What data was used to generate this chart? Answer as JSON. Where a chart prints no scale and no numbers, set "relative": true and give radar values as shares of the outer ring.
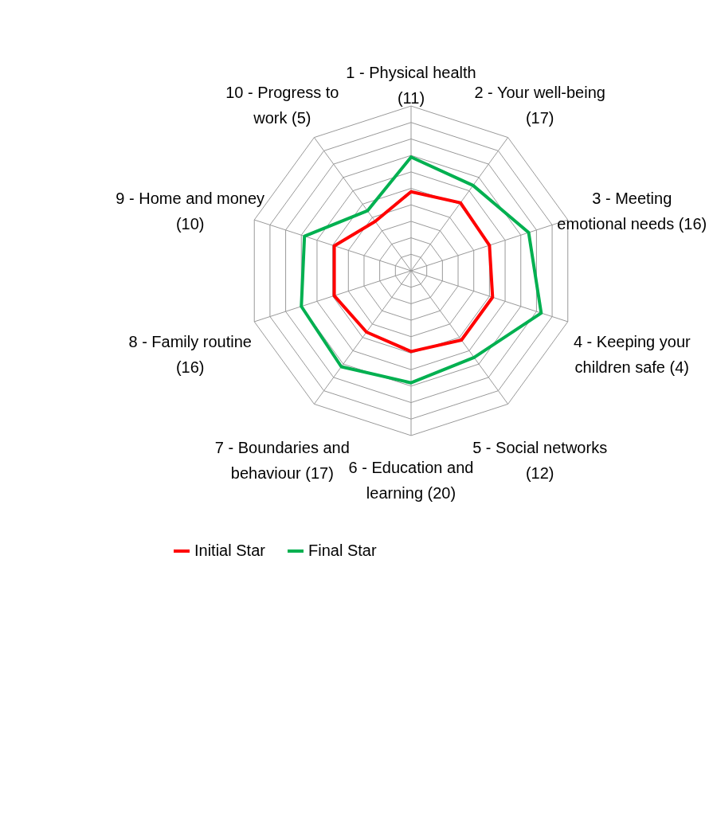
{
  "chart_data": {
    "type": "radar",
    "relative": true,
    "grid": true,
    "legend": "bottom",
    "categories": [
      "1 - Physical health (11)",
      "2 - Your well-being (17)",
      "3 - Meeting emotional needs (16)",
      "4 - Keeping your children safe (4)",
      "5 - Social networks (12)",
      "6 - Education and learning (20)",
      "7 - Boundaries and behaviour (17)",
      "8 - Family routine (16)",
      "9 - Home and money (10)",
      "10 - Progress to work (5)"
    ],
    "series": [
      {
        "name": "Initial Star",
        "color": "#ff0000",
        "values": [
          0.48,
          0.51,
          0.5,
          0.52,
          0.52,
          0.49,
          0.46,
          0.49,
          0.49,
          0.37
        ]
      },
      {
        "name": "Final Star",
        "color": "#00b050",
        "values": [
          0.69,
          0.64,
          0.75,
          0.83,
          0.65,
          0.68,
          0.72,
          0.7,
          0.68,
          0.45
        ]
      }
    ]
  }
}
